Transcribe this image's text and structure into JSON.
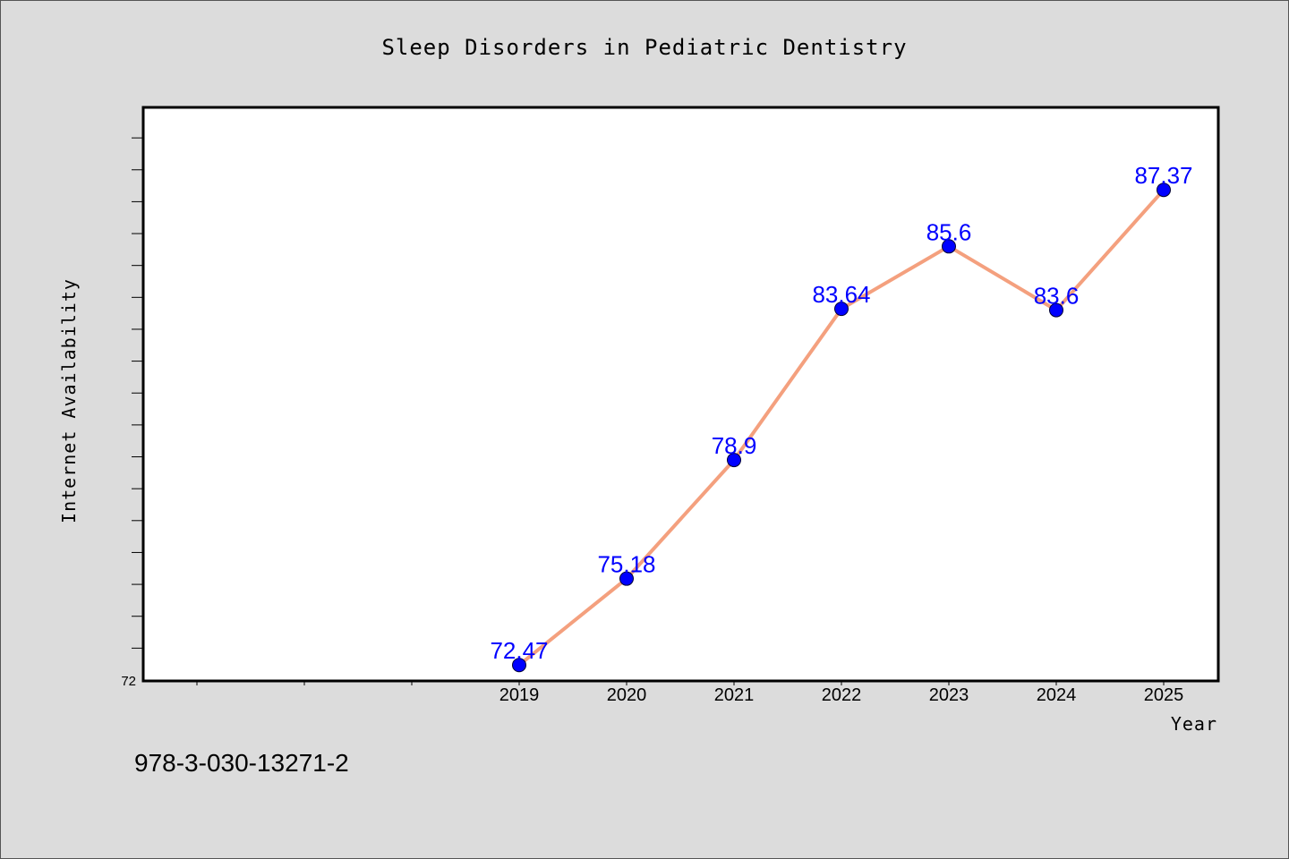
{
  "chart_data": {
    "type": "line",
    "title": "Sleep Disorders in Pediatric Dentistry",
    "xlabel": "Year",
    "ylabel": "Internet Availability",
    "categories": [
      "2019",
      "2020",
      "2021",
      "2022",
      "2023",
      "2024",
      "2025"
    ],
    "series": [
      {
        "values": [
          72.47,
          75.18,
          78.9,
          83.64,
          85.6,
          83.6,
          87.37
        ],
        "labels": [
          "72.47",
          "75.18",
          "78.9",
          "83.64",
          "85.6",
          "83.6",
          "87.37"
        ]
      }
    ],
    "ylim": [
      72,
      90
    ],
    "y_tick_labels": [
      "72"
    ],
    "grid": false,
    "legend": false,
    "colors": {
      "line": "#f4a07e",
      "marker": "#0000ff",
      "data_label": "#0000ff",
      "plot_bg": "#ffffff",
      "page_bg": "#dcdcdc"
    }
  },
  "caption": "978-3-030-13271-2"
}
